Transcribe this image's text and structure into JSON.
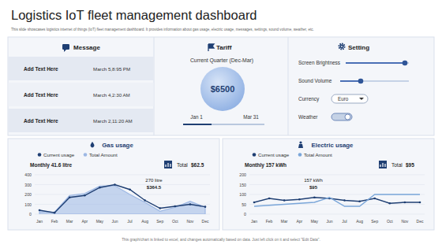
{
  "header": {
    "title": "Logistics IoT fleet management dashboard",
    "subtitle": "This slide showcases logistics internet of things (IoT) fleet management dashboard. It provides information about gas usage, electric usage, messages, settings, sound volume, weather, etc."
  },
  "message": {
    "title": "Message",
    "rows": [
      {
        "text": "Add Text Here",
        "time": "March 5,8:95 PM"
      },
      {
        "text": "Add Text Here",
        "time": "March 4,2:30 AM"
      },
      {
        "text": "Add Text Here",
        "time": "March 2,11:20 AM"
      }
    ]
  },
  "tariff": {
    "title": "Tariff",
    "period": "Current Quarter (Dec-Mar)",
    "amount": "$6500",
    "start": "Jan 1",
    "end": "Mar 31"
  },
  "setting": {
    "title": "Setting",
    "items": [
      "Screen Brightness",
      "Sound Volume",
      "Currency",
      "Weather"
    ],
    "currency": "Euro"
  },
  "chart_data": [
    {
      "type": "line",
      "title": "Gas usage",
      "subtitle": "Monthly 41.6 litre",
      "annotations": [
        "Total",
        "$62.5",
        "270 litre",
        "$364.5"
      ],
      "categories": [
        "Jan",
        "Feb",
        "Mar",
        "Apr",
        "May",
        "Jun",
        "Jul",
        "Aug",
        "Sep",
        "Oct",
        "Nov",
        "Dec"
      ],
      "series": [
        {
          "name": "Current usage",
          "type": "line",
          "marker": "circle",
          "color": "#1f3f73",
          "values": [
            40,
            15,
            170,
            190,
            270,
            300,
            250,
            140,
            60,
            80,
            100,
            75
          ]
        },
        {
          "name": "Total Amount",
          "type": "area",
          "color": "#9db8e4",
          "values": [
            25,
            20,
            190,
            210,
            285,
            290,
            200,
            120,
            30,
            70,
            130,
            70
          ]
        }
      ],
      "ylim": [
        0,
        400
      ],
      "yticks": [
        0,
        100,
        200,
        300,
        400
      ],
      "grid": true,
      "legend": "top"
    },
    {
      "type": "line",
      "title": "Electric usage",
      "subtitle": "Monthly 157 kWh",
      "annotations": [
        "Total",
        "$95",
        "157 kWh",
        "$95"
      ],
      "categories": [
        "Jan",
        "Feb",
        "Mar",
        "Apr",
        "May",
        "Jun",
        "Jul",
        "Aug",
        "Sep",
        "Oct",
        "Nov",
        "Dec"
      ],
      "series": [
        {
          "name": "Current usage",
          "type": "line",
          "marker": "circle",
          "color": "#1f3f73",
          "values": [
            60,
            80,
            70,
            75,
            85,
            80,
            70,
            65,
            80,
            55,
            60,
            60
          ]
        },
        {
          "name": "Total Amount",
          "type": "line",
          "color": "#7aa6d9",
          "values": [
            40,
            45,
            50,
            55,
            60,
            85,
            40,
            40,
            100,
            100,
            100,
            100
          ]
        }
      ],
      "ylim": [
        0,
        200
      ],
      "yticks": [
        0,
        50,
        100,
        150,
        200
      ],
      "grid": true,
      "legend": "top"
    }
  ],
  "footer": "This graph/chart is linked to excel, and changes automatically based on data. Just left click on it and select \"Edit Data\"."
}
